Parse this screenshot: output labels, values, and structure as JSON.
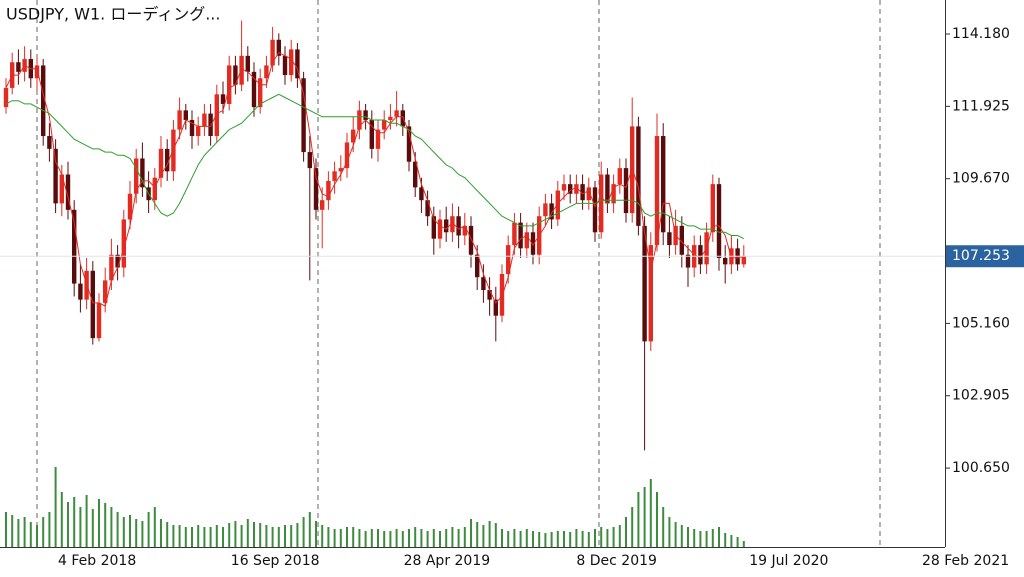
{
  "chart_data": {
    "type": "candlestick",
    "title": "USDJPY, W1. ローディング...",
    "ylim": [
      98.19,
      115.24
    ],
    "yticks": [
      {
        "value": 114.18,
        "label": "114.180"
      },
      {
        "value": 111.925,
        "label": "111.925"
      },
      {
        "value": 109.67,
        "label": "109.670"
      },
      {
        "value": 105.16,
        "label": "105.160"
      },
      {
        "value": 102.905,
        "label": "102.905"
      },
      {
        "value": 100.65,
        "label": "100.650"
      }
    ],
    "last_price": 107.253,
    "x_labels": [
      "4 Feb 2018",
      "16 Sep 2018",
      "28 Apr 2019",
      "8 Dec 2019",
      "19 Jul 2020",
      "28 Feb 2021"
    ],
    "up_color": "#e32b22",
    "down_color": "#5a0b0b",
    "volume_color": "#3d8c3d",
    "ohlc": [
      [
        111.9,
        112.8,
        111.7,
        112.5
      ],
      [
        112.5,
        113.6,
        112.3,
        113.3
      ],
      [
        113.3,
        113.7,
        112.6,
        113.0
      ],
      [
        113.0,
        113.8,
        112.7,
        113.4
      ],
      [
        113.4,
        113.7,
        112.5,
        112.8
      ],
      [
        112.8,
        113.5,
        112.4,
        113.2
      ],
      [
        113.2,
        113.4,
        110.7,
        111.0
      ],
      [
        111.0,
        111.4,
        110.2,
        110.6
      ],
      [
        110.6,
        110.9,
        108.6,
        108.9
      ],
      [
        108.9,
        110.1,
        108.5,
        109.8
      ],
      [
        109.8,
        110.2,
        108.4,
        108.7
      ],
      [
        108.7,
        109.0,
        106.0,
        106.4
      ],
      [
        106.4,
        107.0,
        105.5,
        105.9
      ],
      [
        105.9,
        107.2,
        105.6,
        106.8
      ],
      [
        106.8,
        107.1,
        104.5,
        104.7
      ],
      [
        104.7,
        106.1,
        104.6,
        105.8
      ],
      [
        105.8,
        106.9,
        105.5,
        106.5
      ],
      [
        106.5,
        107.8,
        106.2,
        107.3
      ],
      [
        107.3,
        107.6,
        106.5,
        106.9
      ],
      [
        106.9,
        108.7,
        106.6,
        108.4
      ],
      [
        108.4,
        109.6,
        108.1,
        109.2
      ],
      [
        109.2,
        110.6,
        108.9,
        110.3
      ],
      [
        110.3,
        110.8,
        109.1,
        109.4
      ],
      [
        109.4,
        109.9,
        108.6,
        109.0
      ],
      [
        109.0,
        110.0,
        108.7,
        109.7
      ],
      [
        109.7,
        111.0,
        109.4,
        110.6
      ],
      [
        110.6,
        110.9,
        109.6,
        109.9
      ],
      [
        109.9,
        111.5,
        109.6,
        111.2
      ],
      [
        111.2,
        112.2,
        110.9,
        111.8
      ],
      [
        111.8,
        112.0,
        111.2,
        111.5
      ],
      [
        111.5,
        111.8,
        110.6,
        111.0
      ],
      [
        111.0,
        111.6,
        110.7,
        111.3
      ],
      [
        111.3,
        112.0,
        111.0,
        111.7
      ],
      [
        111.7,
        112.0,
        110.7,
        111.0
      ],
      [
        111.0,
        112.6,
        110.8,
        112.3
      ],
      [
        112.3,
        112.7,
        111.7,
        112.0
      ],
      [
        112.0,
        113.5,
        111.8,
        113.2
      ],
      [
        113.2,
        113.5,
        112.3,
        112.6
      ],
      [
        112.6,
        114.6,
        112.4,
        113.5
      ],
      [
        113.5,
        113.8,
        112.7,
        113.0
      ],
      [
        113.0,
        113.3,
        111.6,
        111.9
      ],
      [
        111.9,
        113.1,
        111.7,
        112.8
      ],
      [
        112.8,
        113.5,
        112.5,
        113.2
      ],
      [
        113.2,
        114.4,
        113.0,
        114.0
      ],
      [
        114.0,
        114.2,
        113.2,
        113.5
      ],
      [
        113.5,
        113.8,
        112.6,
        112.9
      ],
      [
        112.9,
        114.0,
        112.7,
        113.7
      ],
      [
        113.7,
        113.9,
        112.5,
        112.8
      ],
      [
        112.8,
        113.0,
        110.2,
        110.5
      ],
      [
        110.5,
        111.0,
        106.5,
        110.0
      ],
      [
        110.0,
        110.3,
        108.4,
        108.7
      ],
      [
        108.7,
        109.4,
        107.5,
        109.0
      ],
      [
        109.0,
        109.9,
        108.7,
        109.6
      ],
      [
        109.6,
        110.2,
        109.2,
        109.9
      ],
      [
        109.9,
        110.4,
        109.6,
        110.0
      ],
      [
        110.0,
        111.1,
        109.7,
        110.8
      ],
      [
        110.8,
        111.6,
        110.5,
        111.2
      ],
      [
        111.2,
        112.1,
        110.9,
        111.8
      ],
      [
        111.8,
        112.0,
        111.2,
        111.5
      ],
      [
        111.5,
        111.8,
        110.3,
        110.6
      ],
      [
        110.6,
        111.5,
        110.2,
        111.2
      ],
      [
        111.2,
        111.8,
        110.9,
        111.5
      ],
      [
        111.5,
        112.0,
        111.2,
        111.6
      ],
      [
        111.6,
        112.4,
        111.3,
        111.8
      ],
      [
        111.8,
        112.0,
        111.0,
        111.3
      ],
      [
        111.3,
        111.5,
        109.9,
        110.2
      ],
      [
        110.2,
        110.5,
        109.1,
        109.4
      ],
      [
        109.4,
        109.7,
        108.6,
        109.0
      ],
      [
        109.0,
        109.3,
        108.2,
        108.5
      ],
      [
        108.5,
        108.8,
        107.3,
        107.8
      ],
      [
        107.8,
        108.7,
        107.5,
        108.4
      ],
      [
        108.4,
        108.8,
        107.7,
        108.0
      ],
      [
        108.0,
        108.9,
        107.7,
        108.5
      ],
      [
        108.5,
        108.8,
        107.5,
        107.9
      ],
      [
        107.9,
        108.6,
        107.6,
        108.2
      ],
      [
        108.2,
        108.5,
        106.9,
        107.3
      ],
      [
        107.3,
        107.6,
        106.2,
        106.6
      ],
      [
        106.6,
        107.0,
        105.8,
        106.2
      ],
      [
        106.2,
        106.6,
        105.4,
        105.9
      ],
      [
        105.9,
        106.3,
        104.6,
        105.4
      ],
      [
        105.4,
        107.0,
        105.2,
        106.7
      ],
      [
        106.7,
        107.9,
        106.4,
        107.6
      ],
      [
        107.6,
        108.6,
        107.3,
        108.3
      ],
      [
        108.3,
        108.6,
        107.2,
        107.5
      ],
      [
        107.5,
        108.3,
        107.2,
        108.0
      ],
      [
        108.0,
        108.3,
        107.0,
        107.3
      ],
      [
        107.3,
        108.8,
        107.0,
        108.5
      ],
      [
        108.5,
        109.2,
        108.2,
        108.9
      ],
      [
        108.9,
        109.2,
        108.1,
        108.4
      ],
      [
        108.4,
        109.6,
        108.2,
        109.3
      ],
      [
        109.3,
        109.8,
        109.0,
        109.5
      ],
      [
        109.5,
        109.8,
        108.9,
        109.2
      ],
      [
        109.2,
        109.8,
        108.9,
        109.5
      ],
      [
        109.5,
        109.8,
        108.7,
        109.0
      ],
      [
        109.0,
        109.7,
        108.7,
        109.4
      ],
      [
        109.4,
        109.6,
        107.7,
        108.0
      ],
      [
        108.0,
        110.2,
        107.8,
        109.8
      ],
      [
        109.8,
        110.0,
        108.6,
        108.9
      ],
      [
        108.9,
        109.8,
        108.6,
        109.5
      ],
      [
        109.5,
        110.3,
        109.2,
        110.0
      ],
      [
        110.0,
        110.3,
        108.3,
        108.6
      ],
      [
        108.6,
        112.2,
        108.3,
        111.3
      ],
      [
        111.3,
        111.6,
        107.9,
        108.2
      ],
      [
        108.2,
        108.5,
        101.2,
        104.6
      ],
      [
        104.6,
        108.0,
        104.3,
        107.6
      ],
      [
        107.6,
        111.7,
        107.4,
        111.0
      ],
      [
        111.0,
        111.4,
        107.6,
        108.0
      ],
      [
        108.0,
        108.5,
        107.2,
        107.6
      ],
      [
        107.6,
        108.7,
        107.3,
        108.2
      ],
      [
        108.2,
        108.5,
        106.9,
        107.3
      ],
      [
        107.3,
        107.6,
        106.3,
        106.9
      ],
      [
        106.9,
        107.9,
        106.6,
        107.6
      ],
      [
        107.6,
        107.9,
        106.7,
        107.0
      ],
      [
        107.0,
        108.3,
        106.7,
        108.0
      ],
      [
        108.0,
        109.8,
        107.7,
        109.5
      ],
      [
        109.5,
        109.7,
        106.8,
        107.2
      ],
      [
        107.2,
        107.6,
        106.4,
        107.0
      ],
      [
        107.0,
        107.9,
        106.7,
        107.5
      ],
      [
        107.5,
        107.8,
        106.8,
        107.0
      ],
      [
        107.0,
        107.6,
        106.9,
        107.25
      ]
    ],
    "volume": [
      35,
      32,
      28,
      30,
      25,
      22,
      30,
      35,
      80,
      55,
      45,
      50,
      40,
      52,
      38,
      48,
      44,
      40,
      35,
      30,
      32,
      28,
      26,
      35,
      40,
      28,
      25,
      22,
      22,
      20,
      20,
      22,
      20,
      20,
      22,
      20,
      24,
      26,
      22,
      28,
      25,
      24,
      22,
      20,
      20,
      22,
      22,
      24,
      30,
      35,
      26,
      22,
      20,
      18,
      18,
      20,
      20,
      18,
      16,
      18,
      18,
      16,
      16,
      18,
      16,
      18,
      20,
      18,
      16,
      18,
      16,
      18,
      20,
      18,
      20,
      28,
      25,
      22,
      26,
      24,
      18,
      16,
      18,
      16,
      18,
      16,
      15,
      14,
      15,
      16,
      16,
      15,
      18,
      16,
      15,
      18,
      20,
      18,
      20,
      22,
      30,
      40,
      55,
      60,
      68,
      55,
      40,
      30,
      25,
      22,
      20,
      18,
      16,
      16,
      18,
      20,
      14,
      12,
      10,
      6
    ],
    "series": [
      {
        "color": "#e32b22",
        "values": [
          112.5,
          112.9,
          112.9,
          113.2,
          113.1,
          113.1,
          112.3,
          111.6,
          110.2,
          109.8,
          109.1,
          108.3,
          107.0,
          106.4,
          105.8,
          105.8,
          105.7,
          106.5,
          106.9,
          107.5,
          108.2,
          109.3,
          109.6,
          109.6,
          109.4,
          109.8,
          110.1,
          110.6,
          111.0,
          111.5,
          111.4,
          111.3,
          111.3,
          111.3,
          111.7,
          111.8,
          112.5,
          112.6,
          113.1,
          113.0,
          112.8,
          112.6,
          112.6,
          113.3,
          113.6,
          113.5,
          113.4,
          113.1,
          112.3,
          111.1,
          109.7,
          109.2,
          109.1,
          109.5,
          109.8,
          110.2,
          110.7,
          111.3,
          111.5,
          111.3,
          111.1,
          111.1,
          111.4,
          111.6,
          111.6,
          111.1,
          110.3,
          109.5,
          109.0,
          108.4,
          108.2,
          108.1,
          108.3,
          108.1,
          108.2,
          107.8,
          107.4,
          106.7,
          106.2,
          105.8,
          106.0,
          106.6,
          107.5,
          107.8,
          107.9,
          107.6,
          107.9,
          108.2,
          108.6,
          108.9,
          109.1,
          109.3,
          109.4,
          109.2,
          109.3,
          108.8,
          109.1,
          108.9,
          109.4,
          109.5,
          109.4,
          110.0,
          109.4,
          108.0,
          106.8,
          107.7,
          108.9,
          108.9,
          107.9,
          107.7,
          107.5,
          107.3,
          107.2,
          107.5,
          108.2,
          108.2,
          107.9,
          107.2,
          107.2,
          107.25
        ]
      },
      {
        "color": "#2f9e2f",
        "values": [
          112.0,
          112.1,
          112.1,
          112.0,
          112.0,
          111.9,
          111.8,
          111.7,
          111.5,
          111.3,
          111.1,
          110.9,
          110.8,
          110.7,
          110.6,
          110.6,
          110.5,
          110.5,
          110.4,
          110.4,
          110.3,
          110.0,
          109.6,
          109.2,
          108.9,
          108.6,
          108.5,
          108.6,
          108.9,
          109.3,
          109.7,
          110.1,
          110.4,
          110.6,
          110.8,
          111.0,
          111.2,
          111.3,
          111.4,
          111.6,
          111.8,
          112.0,
          112.1,
          112.2,
          112.3,
          112.2,
          112.1,
          112.0,
          111.9,
          111.8,
          111.7,
          111.6,
          111.6,
          111.6,
          111.6,
          111.6,
          111.6,
          111.6,
          111.6,
          111.5,
          111.5,
          111.5,
          111.4,
          111.4,
          111.3,
          111.2,
          111.0,
          110.9,
          110.7,
          110.5,
          110.3,
          110.1,
          110.0,
          109.8,
          109.7,
          109.5,
          109.3,
          109.1,
          108.9,
          108.7,
          108.5,
          108.4,
          108.3,
          108.2,
          108.2,
          108.2,
          108.3,
          108.4,
          108.5,
          108.6,
          108.7,
          108.8,
          108.9,
          108.9,
          108.9,
          108.9,
          109.0,
          109.0,
          109.0,
          109.0,
          109.0,
          109.0,
          108.9,
          108.6,
          108.5,
          108.6,
          108.6,
          108.5,
          108.4,
          108.3,
          108.2,
          108.2,
          108.1,
          108.1,
          108.1,
          108.0,
          108.0,
          107.9,
          107.9,
          107.8
        ]
      }
    ]
  }
}
